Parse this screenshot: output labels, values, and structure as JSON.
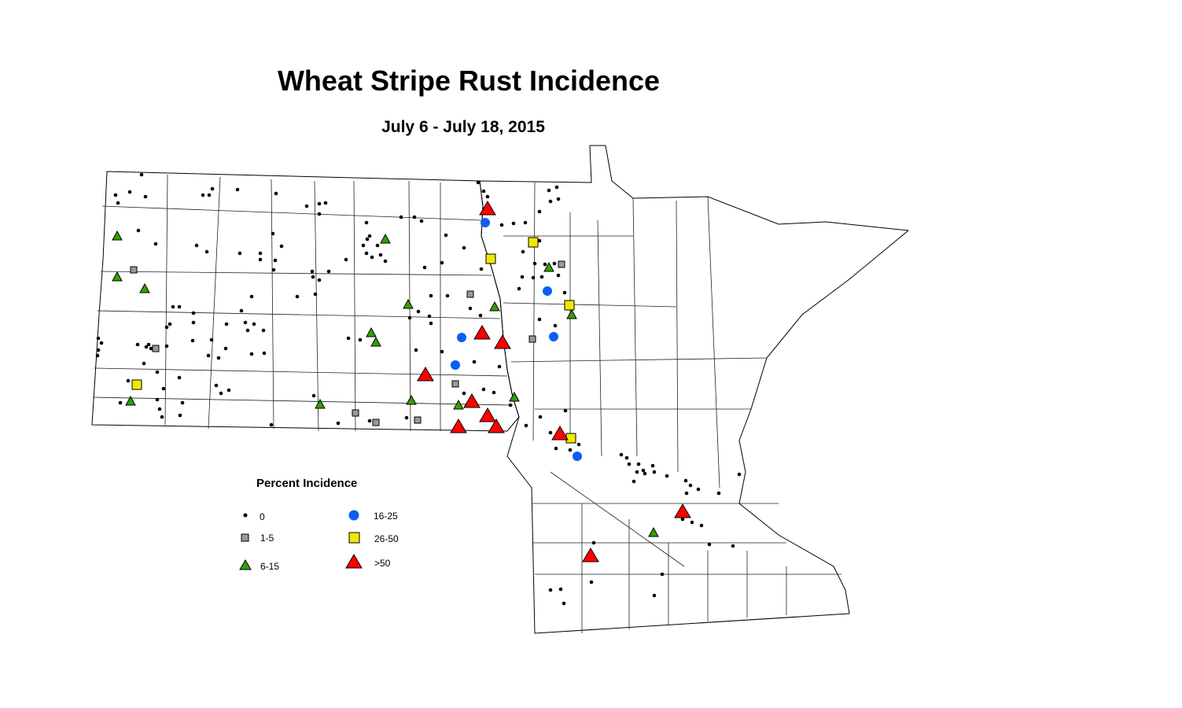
{
  "title": "Wheat Stripe Rust Incidence",
  "subtitle": "July 6 - July 18, 2015",
  "legend": {
    "title": "Percent Incidence",
    "items": [
      {
        "label": "0",
        "symbol": "small-dot",
        "color": "#000000"
      },
      {
        "label": "1-5",
        "symbol": "square",
        "color": "#999999"
      },
      {
        "label": "6-15",
        "symbol": "triangle",
        "color": "#33a000"
      },
      {
        "label": "16-25",
        "symbol": "circle",
        "color": "#0a5ff0"
      },
      {
        "label": "26-50",
        "symbol": "square",
        "color": "#f0e800"
      },
      {
        "label": ">50",
        "symbol": "triangle",
        "color": "#ff0000"
      }
    ]
  }
}
